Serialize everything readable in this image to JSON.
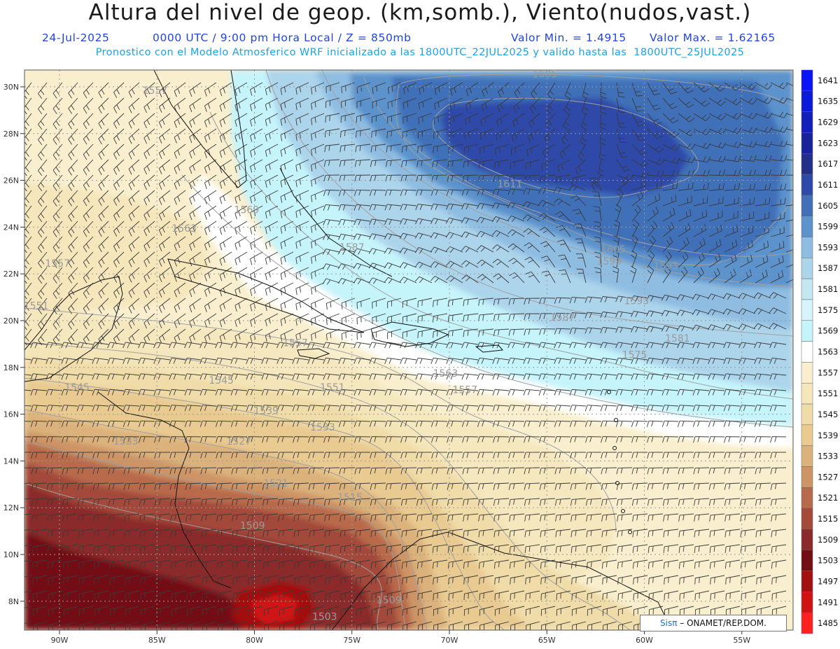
{
  "header": {
    "title": "Altura del nivel de geop. (km,somb.), Viento(nudos,vast.)",
    "date": "24-Jul-2025",
    "time_info": "0000 UTC / 9:00 pm Hora Local / Z = 850mb",
    "min_value": "Valor Min. = 1.4915",
    "max_value": "Valor Max. = 1.62165",
    "model_info": "Pronostico con el Modelo Atmosferico WRF inicializado a las 1800UTC_22JUL2025 y valido hasta las  1800UTC_25JUL2025"
  },
  "axes": {
    "lon_ticks": [
      "90W",
      "85W",
      "80W",
      "75W",
      "70W",
      "65W",
      "60W",
      "55W"
    ],
    "lat_ticks": [
      "30N",
      "28N",
      "26N",
      "24N",
      "22N",
      "20N",
      "18N",
      "16N",
      "14N",
      "12N",
      "10N",
      "8N"
    ]
  },
  "colorbar": {
    "levels": [
      "1641",
      "1635",
      "1629",
      "1623",
      "1617",
      "1611",
      "1605",
      "1599",
      "1593",
      "1587",
      "1581",
      "1575",
      "1569",
      "1563",
      "1557",
      "1551",
      "1545",
      "1539",
      "1533",
      "1527",
      "1521",
      "1515",
      "1509",
      "1503",
      "1497",
      "1491",
      "1485"
    ],
    "colors": [
      "#0a14f5",
      "#0b1ad8",
      "#121fb8",
      "#18239a",
      "#232f88",
      "#2f49a8",
      "#4170b8",
      "#5c93cc",
      "#8fbde2",
      "#acd4eb",
      "#c4e7f2",
      "#d6f4fa",
      "#c6f4fb",
      "#ffffff",
      "#f9efce",
      "#f5e6bb",
      "#f0dca8",
      "#e9cb92",
      "#dcb27c",
      "#cd9466",
      "#b86a4c",
      "#a34a3a",
      "#8b2a2a",
      "#720f14",
      "#a21010",
      "#cf1212",
      "#ff2020"
    ]
  },
  "contour_labels": [
    {
      "text": "1605",
      "lon": -65.1,
      "lat": 30.4
    },
    {
      "text": "1611",
      "lon": -66.9,
      "lat": 25.7
    },
    {
      "text": "1605",
      "lon": -61.6,
      "lat": 22.9
    },
    {
      "text": "1599",
      "lon": -61.8,
      "lat": 22.4
    },
    {
      "text": "1587",
      "lon": -75.0,
      "lat": 23.0
    },
    {
      "text": "1587",
      "lon": -64.2,
      "lat": 20.0
    },
    {
      "text": "1593",
      "lon": -60.4,
      "lat": 20.7
    },
    {
      "text": "1581",
      "lon": -58.3,
      "lat": 19.1
    },
    {
      "text": "1575",
      "lon": -60.5,
      "lat": 18.4
    },
    {
      "text": "1569",
      "lon": -80.4,
      "lat": 24.6
    },
    {
      "text": "1563",
      "lon": -83.6,
      "lat": 23.8
    },
    {
      "text": "1557",
      "lon": -85.1,
      "lat": 29.7
    },
    {
      "text": "1557",
      "lon": -90.1,
      "lat": 22.3
    },
    {
      "text": "1557",
      "lon": -77.9,
      "lat": 18.9
    },
    {
      "text": "1563",
      "lon": -70.2,
      "lat": 17.6
    },
    {
      "text": "1557",
      "lon": -69.2,
      "lat": 16.9
    },
    {
      "text": "1551",
      "lon": -91.2,
      "lat": 20.5
    },
    {
      "text": "1551",
      "lon": -76.0,
      "lat": 17.0
    },
    {
      "text": "1545",
      "lon": -89.1,
      "lat": 17.0
    },
    {
      "text": "1545",
      "lon": -81.7,
      "lat": 17.3
    },
    {
      "text": "1539",
      "lon": -79.4,
      "lat": 16.0
    },
    {
      "text": "1533",
      "lon": -76.5,
      "lat": 15.3
    },
    {
      "text": "1533",
      "lon": -86.6,
      "lat": 14.7
    },
    {
      "text": "1527",
      "lon": -80.8,
      "lat": 14.7
    },
    {
      "text": "1521",
      "lon": -78.9,
      "lat": 12.9
    },
    {
      "text": "1515",
      "lon": -75.1,
      "lat": 12.3
    },
    {
      "text": "1509",
      "lon": -80.1,
      "lat": 11.1
    },
    {
      "text": "1509",
      "lon": -73.1,
      "lat": 7.9
    },
    {
      "text": "1503",
      "lon": -76.4,
      "lat": 7.2
    },
    {
      "text": "1593",
      "lon": -58.9,
      "lat": 22.2
    }
  ],
  "credit": {
    "logo": "Sisπ",
    "text": " – ONAMET/REP.DOM."
  }
}
